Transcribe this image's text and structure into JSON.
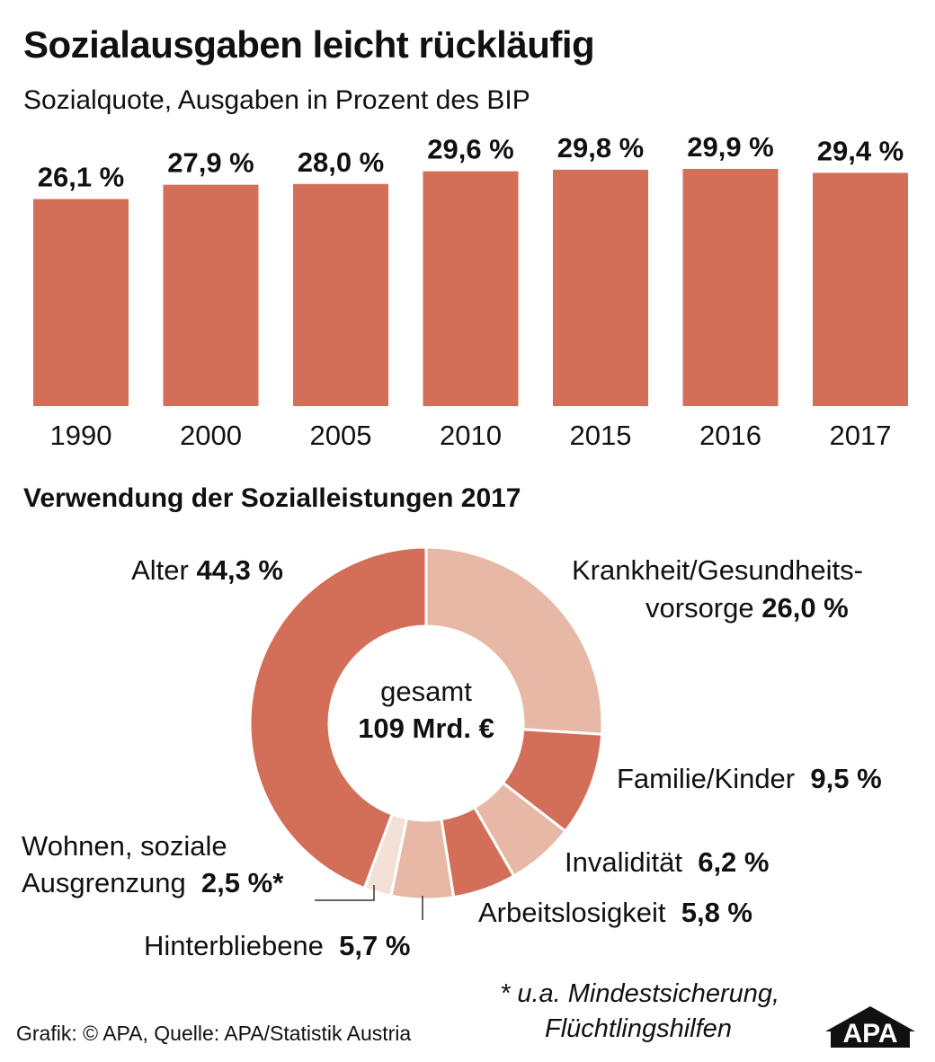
{
  "header": {
    "title": "Sozialausgaben leicht rückläufig",
    "subtitle": "Sozialquote, Ausgaben in Prozent des BIP"
  },
  "colors": {
    "bar": "#d36e58",
    "seg_dark": "#d36e58",
    "seg_light": "#e8b8a6",
    "seg_lightest": "#f3e0d7",
    "leader": "#333333"
  },
  "chart_data": [
    {
      "type": "bar",
      "title": "Sozialquote, Ausgaben in Prozent des BIP",
      "categories": [
        "1990",
        "2000",
        "2005",
        "2010",
        "2015",
        "2016",
        "2017"
      ],
      "values": [
        26.1,
        27.9,
        28.0,
        29.6,
        29.8,
        29.9,
        29.4
      ],
      "value_labels": [
        "26,1 %",
        "27,9 %",
        "28,0 %",
        "29,6 %",
        "29,8 %",
        "29,9 %",
        "29,4 %"
      ],
      "unit": "%",
      "ylim": [
        0,
        30
      ],
      "grid": false
    },
    {
      "type": "pie",
      "title": "Verwendung der Sozialleistungen 2017",
      "center_label": "gesamt",
      "center_value": "109 Mrd. €",
      "slices": [
        {
          "name": "Krankheit/Gesundheitsvorsorge",
          "value": 26.0,
          "shade": "light"
        },
        {
          "name": "Familie/Kinder",
          "value": 9.5,
          "shade": "dark"
        },
        {
          "name": "Invalidität",
          "value": 6.2,
          "shade": "light"
        },
        {
          "name": "Arbeitslosigkeit",
          "value": 5.8,
          "shade": "dark"
        },
        {
          "name": "Hinterbliebene",
          "value": 5.7,
          "shade": "light"
        },
        {
          "name": "Wohnen, soziale Ausgrenzung",
          "value": 2.5,
          "shade": "lightest"
        },
        {
          "name": "Alter",
          "value": 44.3,
          "shade": "dark"
        }
      ]
    }
  ],
  "labels": {
    "alter_name": "Alter",
    "alter_value": "44,3 %",
    "krank_line1": "Krankheit/Gesundheits-",
    "krank_line2": "vorsorge",
    "krank_value": "26,0 %",
    "familie_name": "Familie/Kinder",
    "familie_value": "9,5 %",
    "inval_name": "Invalidität",
    "inval_value": "6,2 %",
    "arbeit_name": "Arbeitslosigkeit",
    "arbeit_value": "5,8 %",
    "hinter_name": "Hinterbliebene",
    "hinter_value": "5,7 %",
    "wohnen_line1": "Wohnen, soziale",
    "wohnen_line2": "Ausgrenzung",
    "wohnen_value": "2,5 %*"
  },
  "footnote": {
    "line1": "* u.a. Mindestsicherung,",
    "line2": "Flüchtlingshilfen"
  },
  "source": "Grafik: © APA, Quelle: APA/Statistik Austria",
  "logo": "APA"
}
